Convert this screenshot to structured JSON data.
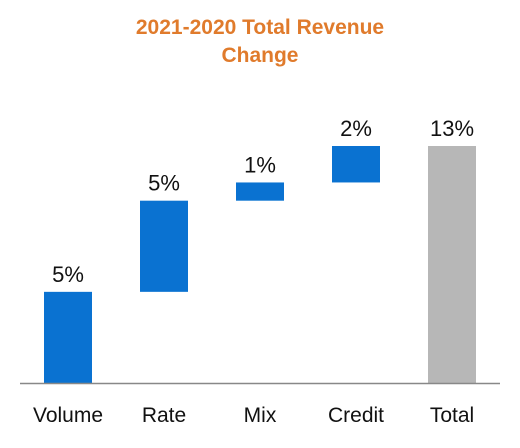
{
  "chart_data": {
    "type": "bar",
    "subtype": "waterfall",
    "title": "2021-2020 Total Revenue Change",
    "title_lines": [
      "2021-2020 Total Revenue",
      "Change"
    ],
    "categories": [
      "Volume",
      "Rate",
      "Mix",
      "Credit",
      "Total"
    ],
    "values": [
      5,
      5,
      1,
      2,
      13
    ],
    "data_labels": [
      "5%",
      "5%",
      "1%",
      "2%",
      "13%"
    ],
    "bar_kind": [
      "delta",
      "delta",
      "delta",
      "delta",
      "total"
    ],
    "unit": "%",
    "ylim": [
      0,
      13
    ],
    "xlabel": "",
    "ylabel": "",
    "grid": false,
    "legend": "none",
    "colors": {
      "delta": "#0a72d1",
      "total": "#b7b7b7",
      "title": "#e07b2c",
      "axis": "#888888",
      "text": "#111111"
    }
  }
}
